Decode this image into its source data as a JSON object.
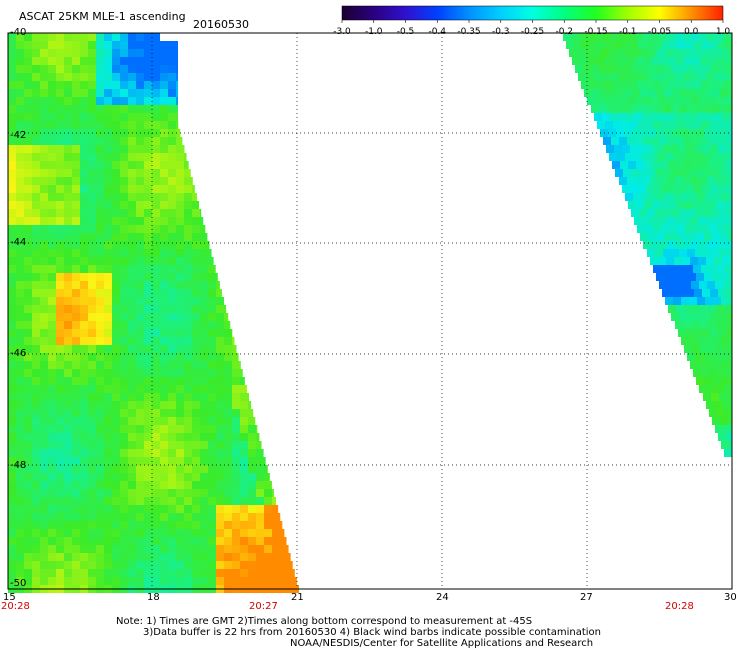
{
  "header": {
    "title": "ASCAT 25KM MLE-1 ascending",
    "date": "20160530"
  },
  "colorbar": {
    "labels": [
      "-3.0",
      "-1.0",
      "-0.5",
      "-0.4",
      "-0.35",
      "-0.3",
      "-0.25",
      "-0.2",
      "-0.15",
      "-0.1",
      "-0.05",
      "0.0",
      "1.0"
    ],
    "colors": [
      "#1a0030",
      "#2b0080",
      "#3010d0",
      "#0040ff",
      "#0090ff",
      "#00d0ff",
      "#00ffe0",
      "#00ff80",
      "#20ff20",
      "#a0ff00",
      "#ffff00",
      "#ff9000",
      "#ff2000"
    ]
  },
  "map": {
    "lat_labels": [
      "-40",
      "-42",
      "-44",
      "-46",
      "-48",
      "-50"
    ],
    "lon_labels": [
      "15",
      "18",
      "21",
      "24",
      "27",
      "30"
    ],
    "time_labels": {
      "left": "20:28",
      "middle": "20:27",
      "right": "20:28"
    }
  },
  "notes": {
    "line1": "Note: 1) Times are GMT 2)Times along bottom correspond to measurement at -45S",
    "line2": "3)Data buffer is 22 hrs from 20160530 4) Black wind barbs indicate possible contamination",
    "line3": "NOAA/NESDIS/Center for Satellite Applications and Research"
  }
}
